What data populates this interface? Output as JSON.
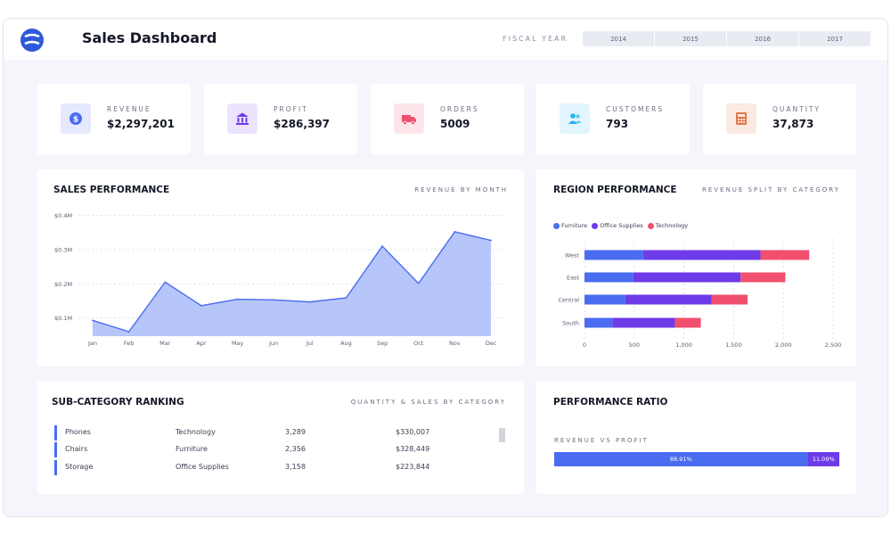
{
  "header": {
    "title": "Sales Dashboard",
    "fiscal_year_label": "FISCAL YEAR",
    "years": [
      "2014",
      "2015",
      "2016",
      "2017"
    ]
  },
  "kpis": [
    {
      "label": "REVENUE",
      "value": "$2,297,201",
      "icon": "dollar-icon",
      "color": "#4a6cf0",
      "bg": "#e4e9fd"
    },
    {
      "label": "PROFIT",
      "value": "$286,397",
      "icon": "bank-icon",
      "color": "#6d3be8",
      "bg": "#ece4fd"
    },
    {
      "label": "ORDERS",
      "value": "5009",
      "icon": "truck-icon",
      "color": "#f0506e",
      "bg": "#fde6ea"
    },
    {
      "label": "CUSTOMERS",
      "value": "793",
      "icon": "users-icon",
      "color": "#25b4f0",
      "bg": "#e2f4fd"
    },
    {
      "label": "QUANTITY",
      "value": "37,873",
      "icon": "calculator-icon",
      "color": "#e0764a",
      "bg": "#fbeae2"
    }
  ],
  "sales_performance": {
    "title": "SALES PERFORMANCE",
    "subtitle": "REVENUE BY MONTH"
  },
  "region_performance": {
    "title": "REGION PERFORMANCE",
    "subtitle": "REVENUE SPLIT BY CATEGORY"
  },
  "sub_category": {
    "title": "SUB-CATEGORY RANKING",
    "subtitle": "QUANTITY & SALES BY CATEGORY",
    "rows": [
      {
        "name": "Phones",
        "category": "Technology",
        "quantity": "3,289",
        "sales": "$330,007"
      },
      {
        "name": "Chairs",
        "category": "Furniture",
        "quantity": "2,356",
        "sales": "$328,449"
      },
      {
        "name": "Storage",
        "category": "Office Supplies",
        "quantity": "3,158",
        "sales": "$223,844"
      }
    ]
  },
  "performance_ratio": {
    "title": "PERFORMANCE RATIO",
    "subtitle": "REVENUE VS PROFIT",
    "revenue_label": "88.91%",
    "profit_label": "11.09%",
    "revenue_fraction": 0.8891,
    "profit_fraction": 0.1109
  },
  "colors": {
    "primary": "#4a6cf0",
    "area_fill": "#b6c6fa",
    "furniture": "#4a6cf0",
    "office_supplies": "#6d3be8",
    "technology": "#f0506e"
  },
  "chart_data": [
    {
      "type": "area",
      "x": [
        "Jan",
        "Feb",
        "Mar",
        "Apr",
        "May",
        "Jun",
        "Jul",
        "Aug",
        "Sep",
        "Oct",
        "Nov",
        "Dec"
      ],
      "values": [
        93000,
        60000,
        205000,
        136000,
        155000,
        153000,
        147000,
        159000,
        310000,
        201000,
        352000,
        327000
      ],
      "y_ticks": [
        "$0.1M",
        "$0.2M",
        "$0.3M",
        "$0.4M"
      ],
      "y_tick_values": [
        100000,
        200000,
        300000,
        400000
      ],
      "ylim": [
        47000,
        430000
      ],
      "grid": true
    },
    {
      "type": "bar",
      "orientation": "horizontal",
      "stacked": true,
      "categories": [
        "West",
        "East",
        "Central",
        "South"
      ],
      "series": [
        {
          "name": "Furniture",
          "values": [
            590,
            490,
            410,
            280
          ]
        },
        {
          "name": "Office Supplies",
          "values": [
            1180,
            1080,
            870,
            630
          ]
        },
        {
          "name": "Technology",
          "values": [
            490,
            450,
            360,
            260
          ]
        }
      ],
      "x_ticks": [
        "0",
        "500",
        "1,000",
        "1,500",
        "2,000",
        "2,500"
      ],
      "x_tick_values": [
        0,
        500,
        1000,
        1500,
        2000,
        2500
      ],
      "xlim": [
        0,
        2500
      ],
      "legend": "top-left",
      "grid": true
    }
  ]
}
